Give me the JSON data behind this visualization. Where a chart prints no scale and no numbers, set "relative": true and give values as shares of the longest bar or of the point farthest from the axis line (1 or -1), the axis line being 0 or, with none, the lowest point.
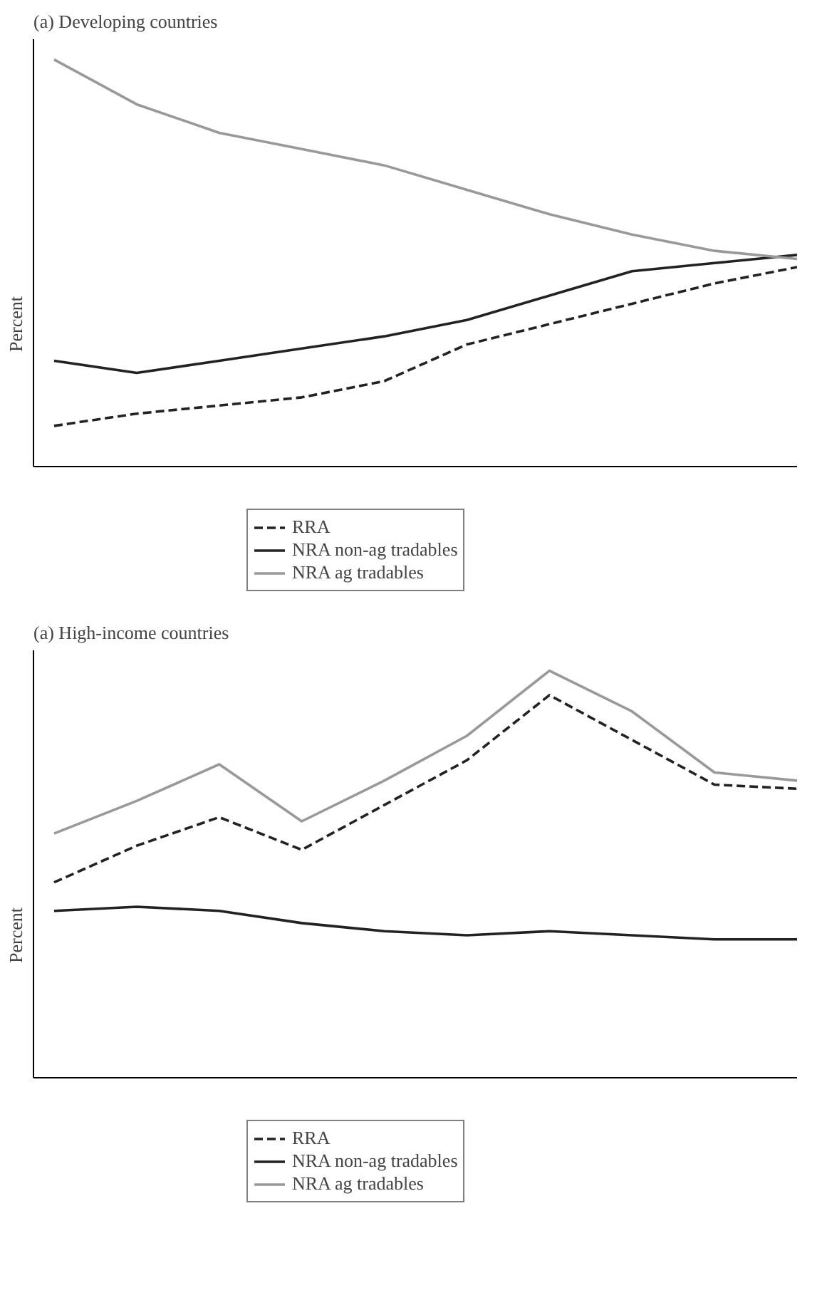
{
  "chart_data": [
    {
      "type": "line",
      "title": "(a) Developing countries",
      "ylabel": "Percent",
      "relative": true,
      "categories": [
        null,
        null,
        null,
        null,
        null,
        null,
        null,
        null,
        null,
        null
      ],
      "legend": "bottom",
      "tick_labels": false,
      "marker": "none",
      "series": [
        {
          "name": "RRA",
          "color": "#222222",
          "line_style": "dashed",
          "values": [
            0.1,
            0.13,
            0.15,
            0.17,
            0.21,
            0.3,
            0.35,
            0.4,
            0.45,
            0.49
          ]
        },
        {
          "name": "NRA non-ag tradables",
          "color": "#222222",
          "line_style": "solid",
          "values": [
            0.26,
            0.23,
            0.26,
            0.29,
            0.32,
            0.36,
            0.42,
            0.48,
            0.5,
            0.52
          ]
        },
        {
          "name": "NRA ag tradables",
          "color": "#999999",
          "line_style": "solid",
          "values": [
            1.0,
            0.89,
            0.82,
            0.78,
            0.74,
            0.68,
            0.62,
            0.57,
            0.53,
            0.51
          ]
        }
      ]
    },
    {
      "type": "line",
      "title": "(a) High-income countries",
      "ylabel": "Percent",
      "relative": true,
      "categories": [
        null,
        null,
        null,
        null,
        null,
        null,
        null,
        null,
        null,
        null
      ],
      "legend": "bottom",
      "tick_labels": false,
      "marker": "none",
      "series": [
        {
          "name": "RRA",
          "color": "#222222",
          "line_style": "dashed",
          "values": [
            0.48,
            0.57,
            0.64,
            0.56,
            0.67,
            0.78,
            0.94,
            0.83,
            0.72,
            0.71
          ]
        },
        {
          "name": "NRA non-ag tradables",
          "color": "#222222",
          "line_style": "solid",
          "values": [
            0.41,
            0.42,
            0.41,
            0.38,
            0.36,
            0.35,
            0.36,
            0.35,
            0.34,
            0.34
          ]
        },
        {
          "name": "NRA ag tradables",
          "color": "#999999",
          "line_style": "solid",
          "values": [
            0.6,
            0.68,
            0.77,
            0.63,
            0.73,
            0.84,
            1.0,
            0.9,
            0.75,
            0.73
          ]
        }
      ]
    }
  ]
}
